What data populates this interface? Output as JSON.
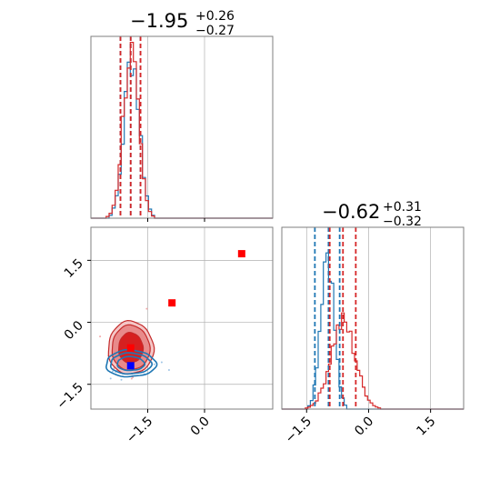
{
  "chart_data": {
    "type": "corner",
    "params": [
      {
        "title_main": "−1.95",
        "title_sup": "+0.26",
        "title_sub": "−0.27"
      },
      {
        "title_main": "−0.62",
        "title_sup": "+0.31",
        "title_sub": "−0.32"
      }
    ],
    "axis_range_p1": [
      -3.0,
      1.8
    ],
    "axis_range_p2": [
      -2.1,
      2.3
    ],
    "ticks_p1": [
      "−1.5",
      "0.0"
    ],
    "ticks_p2": [
      "−1.5",
      "0.0",
      "1.5"
    ],
    "colors": {
      "blue": "#1f77b4",
      "red": "#d62728",
      "axis": "#7f7f7f",
      "grid": "#b0b0b0",
      "marker_red": "#ff0000",
      "marker_blue": "#0000ff"
    },
    "marginal_p1": {
      "blue_quantiles": [
        -2.22,
        -1.95,
        -1.69
      ],
      "red_quantiles": [
        -2.22,
        -1.95,
        -1.69
      ],
      "blue": {
        "mean": -1.92,
        "sd": 0.2
      },
      "red": {
        "mean": -1.95,
        "sd": 0.2
      }
    },
    "marginal_p2": {
      "blue_quantiles": [
        -1.3,
        -0.97,
        -0.7
      ],
      "red_quantiles": [
        -0.94,
        -0.62,
        -0.31
      ],
      "blue": {
        "mean": -1.0,
        "sd": 0.16
      },
      "red": {
        "mean": -0.62,
        "sd": 0.3
      }
    },
    "joint": {
      "red": {
        "center": [
          -1.95,
          -0.62
        ],
        "sd": [
          0.25,
          0.32
        ]
      },
      "blue": {
        "center": [
          -1.95,
          -1.0
        ],
        "sd": [
          0.3,
          0.14
        ]
      }
    },
    "markers": [
      {
        "x": -1.95,
        "y": -0.62,
        "color": "red"
      },
      {
        "x": -1.95,
        "y": -1.05,
        "color": "blue"
      },
      {
        "x": -0.86,
        "y": 0.47,
        "color": "red"
      },
      {
        "x": 0.98,
        "y": 1.66,
        "color": "red"
      }
    ]
  }
}
